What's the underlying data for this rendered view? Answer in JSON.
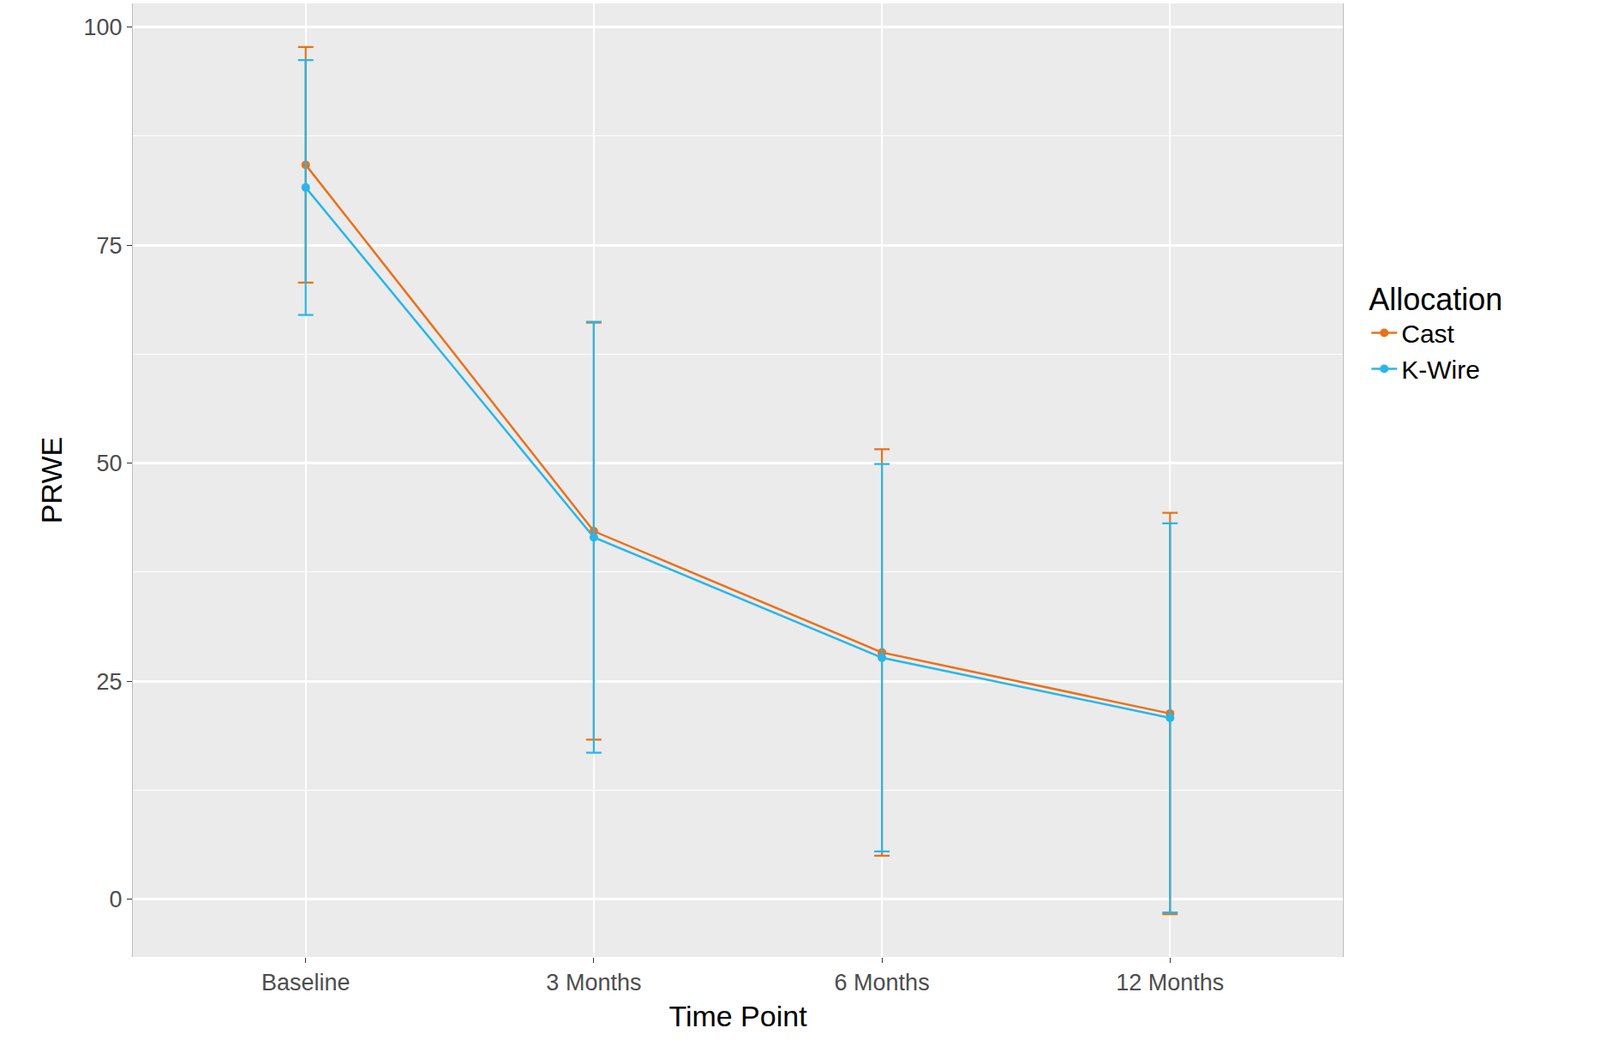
{
  "chart_data": {
    "type": "line",
    "x_label": "Time Point",
    "y_label": "PRWE",
    "legend_title": "Allocation",
    "legend": "right",
    "grid": true,
    "marker": "circle",
    "categories": [
      "Baseline",
      "3 Months",
      "6 Months",
      "12 Months"
    ],
    "series": [
      {
        "name": "Cast",
        "color": "#e8721c",
        "values": [
          84.2,
          42.2,
          28.3,
          21.3
        ],
        "errors": [
          13.5,
          23.9,
          23.3,
          23.0
        ]
      },
      {
        "name": "K-Wire",
        "color": "#29b6e8",
        "values": [
          81.6,
          41.5,
          27.7,
          20.8
        ],
        "errors": [
          14.6,
          24.7,
          22.2,
          22.3
        ]
      }
    ],
    "ylim": [
      -6.6,
      102.7
    ],
    "yticks": [
      0,
      25,
      50,
      75,
      100
    ]
  }
}
